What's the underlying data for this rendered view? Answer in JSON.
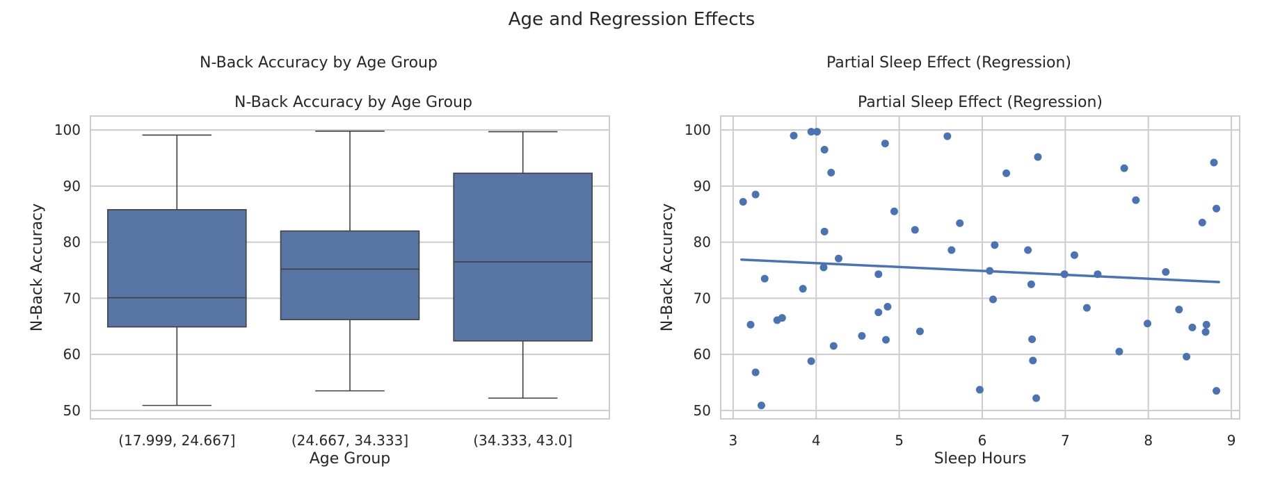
{
  "figure": {
    "suptitle": "Age and Regression Effects"
  },
  "chart_data": [
    {
      "type": "box",
      "outer_title": "N-Back Accuracy by Age Group",
      "title": "N-Back Accuracy by Age Group",
      "xlabel": "Age Group",
      "ylabel": "N-Back Accuracy",
      "ylim": [
        48.5,
        102.5
      ],
      "yticks": [
        50,
        60,
        70,
        80,
        90,
        100
      ],
      "grid": true,
      "box_color": "#5875a4",
      "categories": [
        "(17.999, 24.667]",
        "(24.667, 34.333]",
        "(34.333, 43.0]"
      ],
      "boxes": [
        {
          "whisker_low": 50.9,
          "q1": 64.9,
          "median": 70.1,
          "q3": 85.8,
          "whisker_high": 99.1
        },
        {
          "whisker_low": 53.5,
          "q1": 66.2,
          "median": 75.2,
          "q3": 82.0,
          "whisker_high": 99.8
        },
        {
          "whisker_low": 52.2,
          "q1": 62.4,
          "median": 76.5,
          "q3": 92.3,
          "whisker_high": 99.7
        }
      ]
    },
    {
      "type": "scatter",
      "outer_title": "Partial Sleep Effect (Regression)",
      "title": "Partial Sleep Effect (Regression)",
      "xlabel": "Sleep Hours",
      "ylabel": "N-Back Accuracy",
      "xlim": [
        2.85,
        9.1
      ],
      "ylim": [
        48.5,
        102.5
      ],
      "xticks": [
        3,
        4,
        5,
        6,
        7,
        8,
        9
      ],
      "yticks": [
        50,
        60,
        70,
        80,
        90,
        100
      ],
      "grid": true,
      "point_color": "#4c72b0",
      "points": [
        [
          3.12,
          87.2
        ],
        [
          3.27,
          88.5
        ],
        [
          3.21,
          65.3
        ],
        [
          3.27,
          56.8
        ],
        [
          3.34,
          50.9
        ],
        [
          3.38,
          73.5
        ],
        [
          3.53,
          66.1
        ],
        [
          3.59,
          66.5
        ],
        [
          3.73,
          99.0
        ],
        [
          3.84,
          71.7
        ],
        [
          3.94,
          99.7
        ],
        [
          3.94,
          58.8
        ],
        [
          4.01,
          99.7
        ],
        [
          4.1,
          96.5
        ],
        [
          4.1,
          81.9
        ],
        [
          4.09,
          75.5
        ],
        [
          4.18,
          92.4
        ],
        [
          4.21,
          61.5
        ],
        [
          4.27,
          77.1
        ],
        [
          4.55,
          63.3
        ],
        [
          4.75,
          74.3
        ],
        [
          4.75,
          67.5
        ],
        [
          4.83,
          97.6
        ],
        [
          4.84,
          62.6
        ],
        [
          4.86,
          68.5
        ],
        [
          4.94,
          85.5
        ],
        [
          5.19,
          82.2
        ],
        [
          5.25,
          64.1
        ],
        [
          5.58,
          98.9
        ],
        [
          5.63,
          78.6
        ],
        [
          5.73,
          83.4
        ],
        [
          5.97,
          53.7
        ],
        [
          6.09,
          74.9
        ],
        [
          6.13,
          69.8
        ],
        [
          6.15,
          79.5
        ],
        [
          6.29,
          92.3
        ],
        [
          6.55,
          78.6
        ],
        [
          6.59,
          72.5
        ],
        [
          6.6,
          62.7
        ],
        [
          6.61,
          58.9
        ],
        [
          6.65,
          52.2
        ],
        [
          6.67,
          95.2
        ],
        [
          6.99,
          74.3
        ],
        [
          7.11,
          77.7
        ],
        [
          7.26,
          68.3
        ],
        [
          7.39,
          74.3
        ],
        [
          7.65,
          60.5
        ],
        [
          7.71,
          93.2
        ],
        [
          7.85,
          87.5
        ],
        [
          7.99,
          65.5
        ],
        [
          8.21,
          74.7
        ],
        [
          8.37,
          68.0
        ],
        [
          8.46,
          59.6
        ],
        [
          8.53,
          64.8
        ],
        [
          8.65,
          83.5
        ],
        [
          8.69,
          64.0
        ],
        [
          8.7,
          65.3
        ],
        [
          8.79,
          94.2
        ],
        [
          8.82,
          86.0
        ],
        [
          8.82,
          53.5
        ]
      ],
      "regression": {
        "x": [
          3.1,
          8.85
        ],
        "y": [
          76.9,
          72.9
        ],
        "color": "#4c72b0"
      }
    }
  ]
}
